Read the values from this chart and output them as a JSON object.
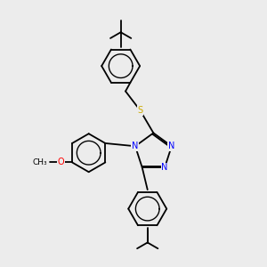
{
  "bg_color": "#ececec",
  "bond_color": "#000000",
  "atom_colors": {
    "N": "#0000ff",
    "S": "#ccaa00",
    "O": "#ff0000",
    "C": "#000000"
  },
  "font_size": 7.0,
  "line_width": 1.3,
  "lw_inner": 1.0
}
